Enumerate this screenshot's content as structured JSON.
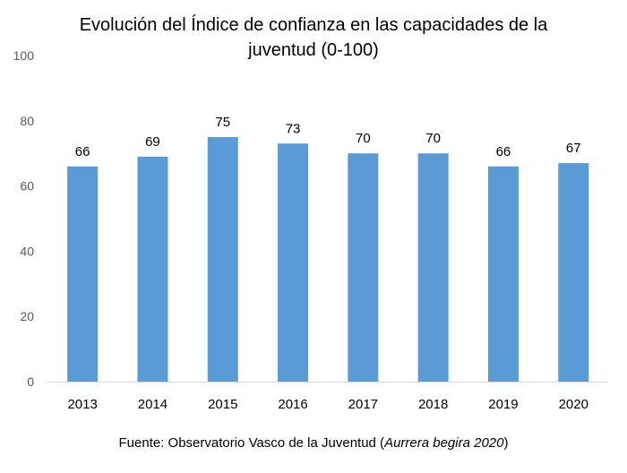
{
  "chart_data": {
    "type": "bar",
    "title": "Evolución del Índice de confianza en las capacidades de la juventud (0-100)",
    "categories": [
      "2013",
      "2014",
      "2015",
      "2016",
      "2017",
      "2018",
      "2019",
      "2020"
    ],
    "values": [
      66,
      69,
      75,
      73,
      70,
      70,
      66,
      67
    ],
    "ylim": [
      0,
      100
    ],
    "yticks": [
      0,
      20,
      40,
      60,
      80,
      100
    ],
    "grid": false,
    "data_labels": true,
    "bar_color": "#5B9BD5",
    "source": {
      "prefix": "Fuente: Observatorio Vasco de la Juventud (",
      "italic": "Aurrera begira 2020",
      "suffix": ")"
    }
  }
}
